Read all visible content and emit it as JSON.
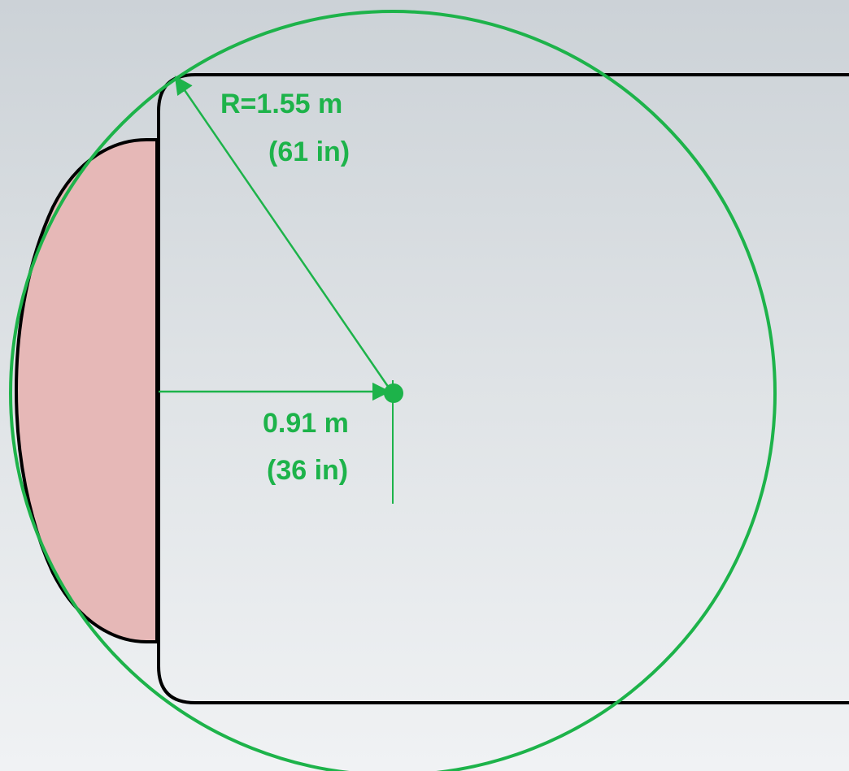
{
  "diagram": {
    "radius_label": "R=1.55 m",
    "radius_label_imperial": "(61 in)",
    "offset_label": "0.91 m",
    "offset_label_imperial": "(36 in)"
  },
  "colors": {
    "dimension": "#1db34a",
    "outline": "#000000",
    "bulge_fill": "#e6b8b7"
  }
}
